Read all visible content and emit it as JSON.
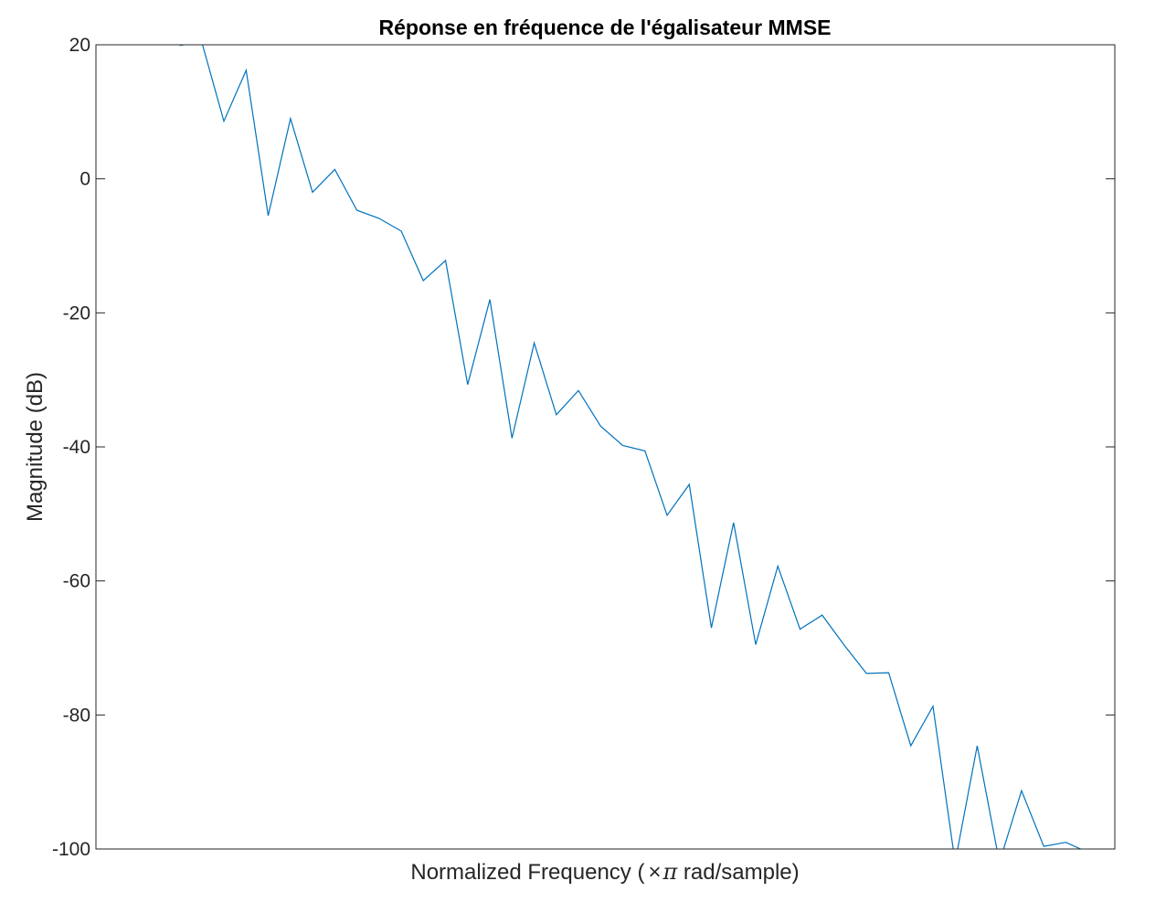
{
  "chart_data": {
    "type": "line",
    "title": "Réponse en fréquence de l'égalisateur MMSE",
    "xlabel": {
      "prefix": "Normalized  Frequency  (",
      "times": "×",
      "pi": "π",
      "suffix": "  rad/sample)"
    },
    "ylabel": "Magnitude (dB)",
    "ylim": [
      -100,
      20
    ],
    "xlim": [
      0,
      1
    ],
    "yticks": [
      {
        "value": 20,
        "label": "20"
      },
      {
        "value": 0,
        "label": "0"
      },
      {
        "value": -20,
        "label": "-20"
      },
      {
        "value": -40,
        "label": "-40"
      },
      {
        "value": -60,
        "label": "-60"
      },
      {
        "value": -80,
        "label": "-80"
      },
      {
        "value": -100,
        "label": "-100"
      }
    ],
    "xticks": [],
    "grid": false,
    "series": [
      {
        "color": "#0072BD",
        "x": [
          0.0821,
          0.1039,
          0.1256,
          0.1474,
          0.1691,
          0.1909,
          0.2126,
          0.2344,
          0.2561,
          0.2778,
          0.2996,
          0.3213,
          0.3431,
          0.3648,
          0.3866,
          0.4083,
          0.4301,
          0.4518,
          0.4735,
          0.4953,
          0.517,
          0.5388,
          0.5605,
          0.5823,
          0.604,
          0.6258,
          0.6475,
          0.6692,
          0.691,
          0.7127,
          0.7345,
          0.7562,
          0.778,
          0.7997,
          0.8215,
          0.8432,
          0.8649,
          0.8867,
          0.9084,
          0.9302,
          0.9519,
          0.9737,
          0.9954
        ],
        "y": [
          19.9,
          20.4,
          8.6,
          16.2,
          -5.5,
          9.0,
          -2.0,
          1.4,
          -4.7,
          -5.9,
          -7.8,
          -15.2,
          -12.2,
          -30.7,
          -18.0,
          -38.7,
          -24.5,
          -35.2,
          -31.6,
          -36.9,
          -39.8,
          -40.6,
          -50.2,
          -45.6,
          -67.0,
          -51.3,
          -69.5,
          -57.8,
          -67.2,
          -65.1,
          -69.6,
          -73.8,
          -73.7,
          -84.6,
          -78.7,
          -102.0,
          -84.6,
          -102.0,
          -91.3,
          -99.6,
          -99.0,
          -100.5,
          -101.0
        ]
      }
    ]
  }
}
